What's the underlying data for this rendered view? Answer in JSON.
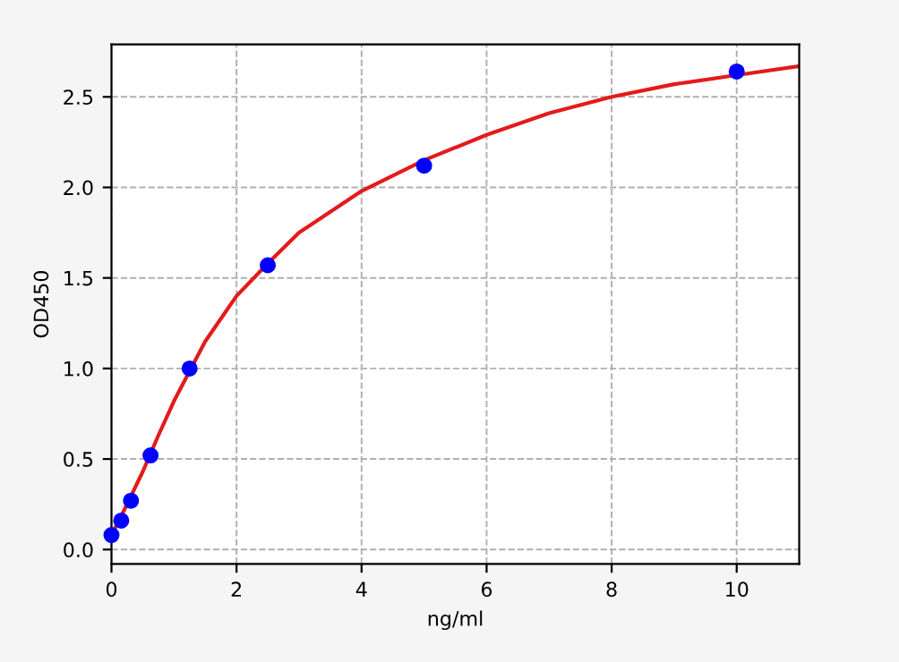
{
  "chart_data": {
    "type": "scatter",
    "xlabel": "ng/ml",
    "ylabel": "OD450",
    "xlim": [
      0,
      11
    ],
    "ylim": [
      -0.08,
      2.79
    ],
    "xticks": [
      0,
      2,
      4,
      6,
      8,
      10
    ],
    "yticks": [
      {
        "value": 0,
        "label": "0.0"
      },
      0.5,
      {
        "value": 1,
        "label": "1.0"
      },
      1.5,
      {
        "value": 2,
        "label": "2.0"
      },
      2.5
    ],
    "grid": true,
    "marker": "circle",
    "series": [
      {
        "color": "#0000ff",
        "x": [
          0,
          0.156,
          0.312,
          0.625,
          1.25,
          2.5,
          5,
          10
        ],
        "values": [
          0.08,
          0.16,
          0.27,
          0.52,
          1.0,
          1.57,
          2.12,
          2.64
        ]
      },
      {
        "type": "line",
        "color": "#e41a1c",
        "line_style": "solid",
        "marker": "none",
        "x": [
          0,
          0.25,
          0.5,
          0.75,
          1,
          1.5,
          2,
          2.5,
          3,
          4,
          5,
          6,
          7,
          8,
          9,
          10,
          11
        ],
        "values": [
          0.08,
          0.25,
          0.43,
          0.63,
          0.82,
          1.15,
          1.4,
          1.58,
          1.75,
          1.98,
          2.15,
          2.29,
          2.41,
          2.5,
          2.57,
          2.62,
          2.67
        ]
      }
    ]
  }
}
